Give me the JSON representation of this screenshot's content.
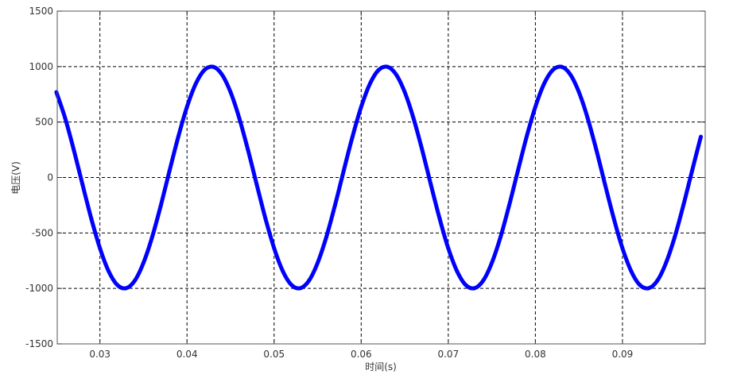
{
  "chart_data": {
    "type": "line",
    "title": "",
    "xlabel": "时间(s)",
    "ylabel": "电压(V)",
    "xlim": [
      0.0251,
      0.0995
    ],
    "ylim": [
      -1500,
      1500
    ],
    "xticks": [
      0.03,
      0.04,
      0.05,
      0.06,
      0.07,
      0.08,
      0.09
    ],
    "xtick_labels": [
      "0.03",
      "0.04",
      "0.05",
      "0.06",
      "0.07",
      "0.08",
      "0.09"
    ],
    "yticks": [
      1500,
      1000,
      500,
      0,
      -500,
      -1000,
      -1500
    ],
    "ytick_labels": [
      "1500",
      "1000",
      "500",
      "0",
      "-500",
      "-1000",
      "-1500"
    ],
    "grid": true,
    "grid_style": "dashed",
    "series": [
      {
        "color": "#0000ff",
        "x_start": 0.025,
        "x_step": 0.001,
        "values": [
          770,
          536,
          249,
          -63,
          -368,
          -637,
          -844,
          -969,
          -998,
          -930,
          -770,
          -536,
          -249,
          63,
          368,
          637,
          844,
          969,
          998,
          930,
          770,
          536,
          249,
          -63,
          -368,
          -637,
          -844,
          -969,
          -998,
          -930,
          -770,
          -536,
          -249,
          63,
          368,
          637,
          844,
          969,
          998,
          930,
          770,
          536,
          249,
          -63,
          -368,
          -637,
          -844,
          -969,
          -998,
          -930,
          -770,
          -536,
          -249,
          63,
          368,
          637,
          844,
          969,
          998,
          930,
          770,
          536,
          249,
          -63,
          -368,
          -637,
          -844,
          -969,
          -998,
          -930,
          -770,
          -536,
          -249,
          63,
          368
        ]
      }
    ]
  }
}
